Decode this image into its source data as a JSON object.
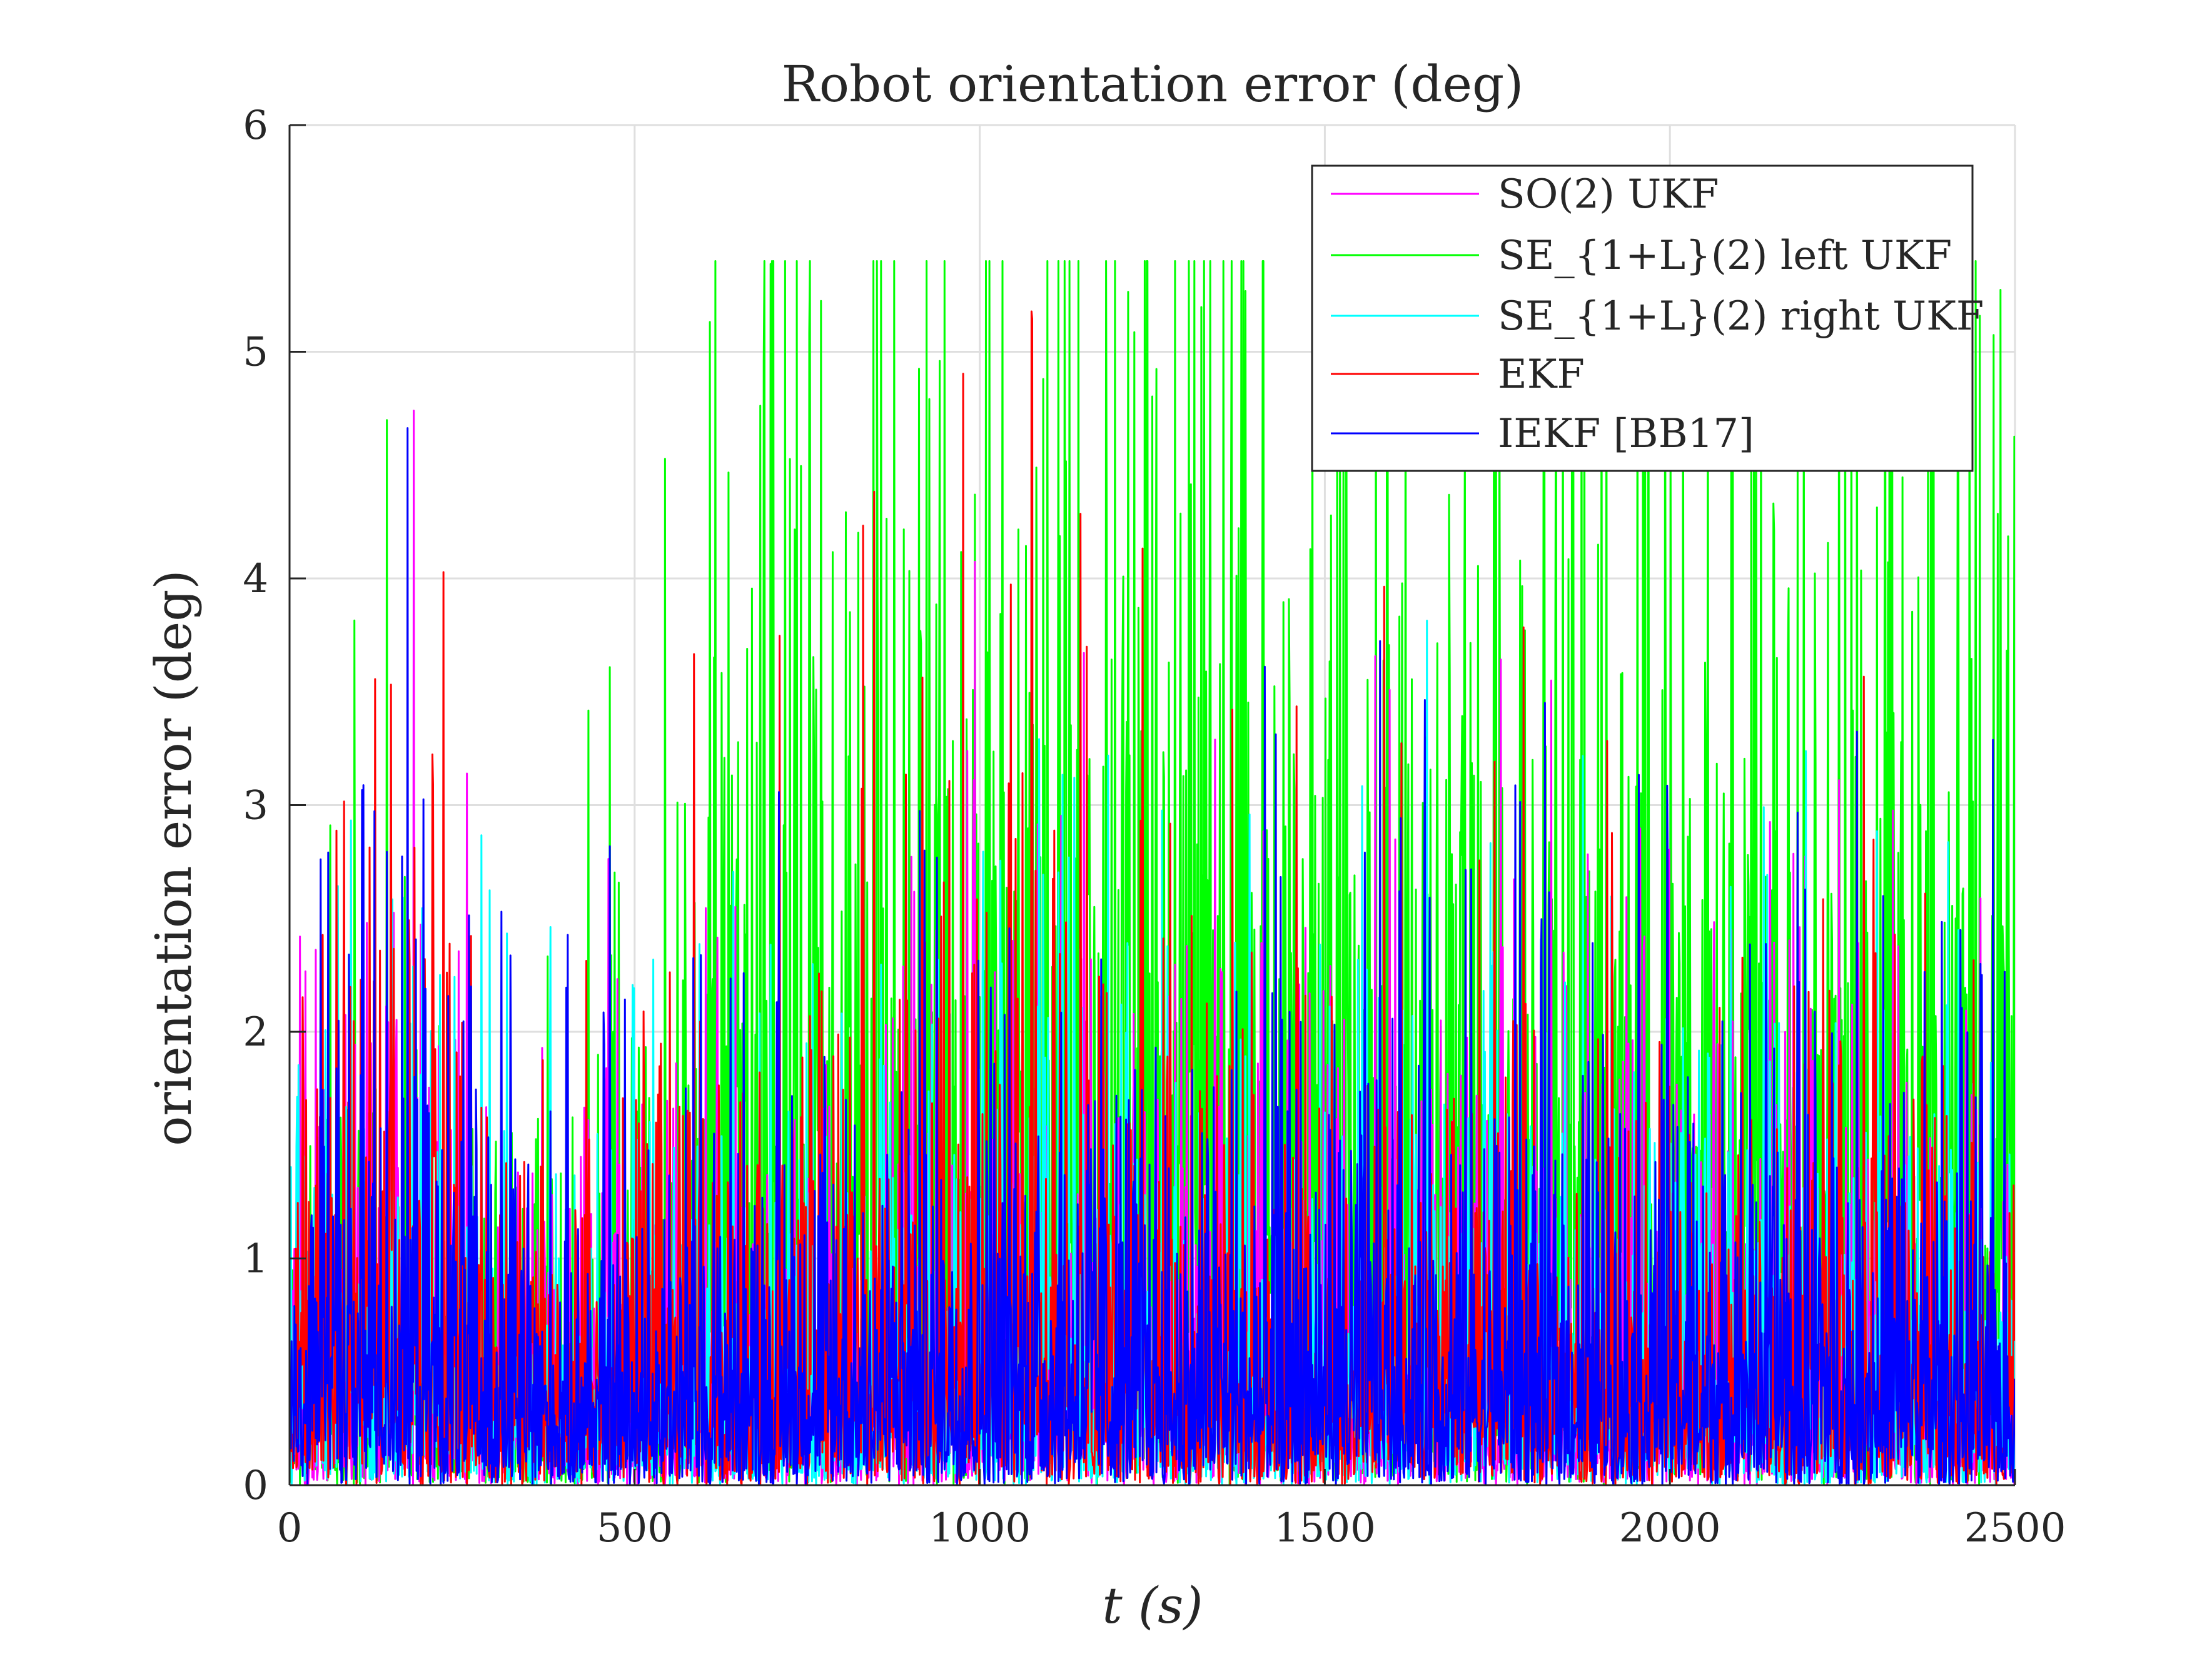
{
  "chart_data": {
    "type": "line",
    "title": "Robot orientation error (deg)",
    "xlabel": "t (s)",
    "ylabel": "orientation error (deg)",
    "xlim": [
      0,
      2500
    ],
    "ylim": [
      0,
      6
    ],
    "xticks": [
      0,
      500,
      1000,
      1500,
      2000,
      2500
    ],
    "yticks": [
      0,
      1,
      2,
      3,
      4,
      5,
      6
    ],
    "xtick_labels": [
      "0",
      "500",
      "1000",
      "1500",
      "2000",
      "2500"
    ],
    "ytick_labels": [
      "0",
      "1",
      "2",
      "3",
      "4",
      "5",
      "6"
    ],
    "grid": true,
    "legend_position": "top-right",
    "series": [
      {
        "name": "SO(2) UKF",
        "color": "#ff00ff",
        "x": [
          0,
          50,
          100,
          150,
          200,
          250,
          300,
          350,
          400,
          450,
          500,
          550,
          600,
          650,
          700,
          750,
          800,
          850,
          900,
          950,
          1000,
          1050,
          1100,
          1150,
          1200,
          1250,
          1300,
          1350,
          1400,
          1450,
          1500,
          1550,
          1600,
          1650,
          1700,
          1750,
          1800,
          1850,
          1900,
          1950,
          2000,
          2050,
          2100,
          2150,
          2200,
          2250,
          2300,
          2350,
          2400,
          2450,
          2500
        ],
        "y": [
          0.7,
          0.9,
          1.1,
          1.2,
          0.9,
          0.8,
          0.7,
          0.6,
          0.6,
          0.7,
          0.7,
          0.8,
          0.8,
          0.8,
          0.9,
          0.8,
          0.8,
          0.8,
          0.9,
          0.9,
          1.0,
          1.0,
          1.1,
          1.0,
          0.9,
          0.9,
          0.9,
          0.8,
          0.8,
          0.8,
          0.8,
          0.8,
          0.8,
          0.8,
          0.8,
          0.8,
          0.8,
          0.8,
          0.8,
          0.8,
          0.8,
          0.8,
          0.8,
          0.8,
          0.8,
          0.8,
          0.8,
          0.8,
          0.7,
          0.7,
          0.7
        ]
      },
      {
        "name": "SE_{1+L}(2) left UKF",
        "color": "#00ff00",
        "x": [
          0,
          50,
          100,
          150,
          200,
          250,
          300,
          350,
          400,
          450,
          500,
          550,
          600,
          650,
          700,
          750,
          800,
          850,
          900,
          950,
          1000,
          1050,
          1100,
          1150,
          1200,
          1250,
          1300,
          1350,
          1400,
          1450,
          1500,
          1550,
          1600,
          1650,
          1700,
          1750,
          1800,
          1850,
          1900,
          1950,
          2000,
          2050,
          2100,
          2150,
          2200,
          2250,
          2300,
          2350,
          2400,
          2450,
          2500
        ],
        "y": [
          0.7,
          0.9,
          1.0,
          1.1,
          0.9,
          0.8,
          0.8,
          0.7,
          0.7,
          0.9,
          1.0,
          1.3,
          1.8,
          2.0,
          2.1,
          2.2,
          2.3,
          2.4,
          2.6,
          2.6,
          2.7,
          2.7,
          2.6,
          2.5,
          2.4,
          2.4,
          2.4,
          2.4,
          2.4,
          2.3,
          2.3,
          2.3,
          2.3,
          2.4,
          2.4,
          2.4,
          2.5,
          2.5,
          2.4,
          2.3,
          2.3,
          2.2,
          2.2,
          2.2,
          2.2,
          2.2,
          2.2,
          2.1,
          2.0,
          1.9,
          1.8
        ]
      },
      {
        "name": "SE_{1+L}(2) right UKF",
        "color": "#00ffff",
        "x": [
          0,
          50,
          100,
          150,
          200,
          250,
          300,
          350,
          400,
          450,
          500,
          550,
          600,
          650,
          700,
          750,
          800,
          850,
          900,
          950,
          1000,
          1050,
          1100,
          1150,
          1200,
          1250,
          1300,
          1350,
          1400,
          1450,
          1500,
          1550,
          1600,
          1650,
          1700,
          1750,
          1800,
          1850,
          1900,
          1950,
          2000,
          2050,
          2100,
          2150,
          2200,
          2250,
          2300,
          2350,
          2400,
          2450,
          2500
        ],
        "y": [
          0.7,
          0.9,
          1.0,
          1.1,
          0.9,
          0.8,
          0.7,
          0.6,
          0.6,
          0.6,
          0.7,
          0.7,
          0.7,
          0.8,
          0.8,
          0.8,
          0.8,
          0.8,
          0.8,
          0.8,
          0.9,
          0.9,
          0.9,
          0.9,
          0.8,
          0.8,
          0.8,
          0.8,
          0.8,
          0.8,
          0.8,
          0.8,
          0.8,
          0.8,
          0.8,
          0.8,
          0.8,
          0.8,
          0.8,
          0.8,
          0.8,
          0.8,
          0.8,
          0.8,
          0.8,
          0.8,
          0.8,
          0.8,
          0.7,
          0.7,
          0.7
        ]
      },
      {
        "name": "EKF",
        "color": "#ff0000",
        "x": [
          0,
          50,
          100,
          150,
          200,
          250,
          300,
          350,
          400,
          450,
          500,
          550,
          600,
          650,
          700,
          750,
          800,
          850,
          900,
          950,
          1000,
          1050,
          1100,
          1150,
          1200,
          1250,
          1300,
          1350,
          1400,
          1450,
          1500,
          1550,
          1600,
          1650,
          1700,
          1750,
          1800,
          1850,
          1900,
          1950,
          2000,
          2050,
          2100,
          2150,
          2200,
          2250,
          2300,
          2350,
          2400,
          2450,
          2500
        ],
        "y": [
          0.8,
          1.0,
          1.4,
          1.5,
          1.1,
          0.9,
          0.8,
          0.8,
          0.7,
          0.7,
          0.8,
          0.8,
          0.9,
          1.0,
          1.0,
          0.9,
          0.9,
          1.0,
          1.0,
          1.1,
          1.2,
          1.2,
          1.1,
          1.0,
          0.9,
          0.9,
          0.9,
          0.9,
          0.8,
          0.8,
          0.8,
          0.8,
          0.9,
          0.8,
          0.8,
          0.9,
          0.8,
          0.8,
          0.8,
          0.8,
          0.8,
          0.8,
          0.8,
          0.8,
          0.8,
          0.8,
          0.8,
          0.8,
          0.8,
          0.7,
          0.7
        ]
      },
      {
        "name": "IEKF [BB17]",
        "color": "#0000ff",
        "x": [
          0,
          50,
          100,
          150,
          200,
          250,
          300,
          350,
          400,
          450,
          500,
          550,
          600,
          650,
          700,
          750,
          800,
          850,
          900,
          950,
          1000,
          1050,
          1100,
          1150,
          1200,
          1250,
          1300,
          1350,
          1400,
          1450,
          1500,
          1550,
          1600,
          1650,
          1700,
          1750,
          1800,
          1850,
          1900,
          1950,
          2000,
          2050,
          2100,
          2150,
          2200,
          2250,
          2300,
          2350,
          2400,
          2450,
          2500
        ],
        "y": [
          0.7,
          0.9,
          1.0,
          1.1,
          0.9,
          0.8,
          0.7,
          0.6,
          0.6,
          0.6,
          0.7,
          0.7,
          0.7,
          0.8,
          0.8,
          0.8,
          0.8,
          0.8,
          0.8,
          0.8,
          0.9,
          0.9,
          0.9,
          0.9,
          0.8,
          0.8,
          0.8,
          0.8,
          0.8,
          0.8,
          0.8,
          0.8,
          0.8,
          0.8,
          0.8,
          0.8,
          0.8,
          0.8,
          0.8,
          0.8,
          0.8,
          0.8,
          0.8,
          0.8,
          0.8,
          0.8,
          0.8,
          0.8,
          0.7,
          0.7,
          0.7
        ]
      }
    ]
  }
}
